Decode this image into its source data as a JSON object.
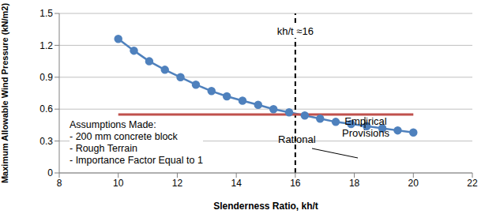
{
  "chart_data": {
    "type": "line",
    "x_label": "Slenderness Ratio, kh/t",
    "y_label": "Maximum Allowable Wind Pressure (kN/m2)",
    "xlim": [
      8,
      22
    ],
    "xticks": [
      8,
      10,
      12,
      14,
      16,
      18,
      20,
      22
    ],
    "ylim": [
      0,
      1.5
    ],
    "yticks": [
      0,
      0.3,
      0.6,
      0.9,
      1.2,
      1.5
    ],
    "grid": true,
    "series": [
      {
        "name": "Rational",
        "color": "#4f81bd",
        "marker": "circle",
        "x": [
          10,
          10.53,
          11.05,
          11.58,
          12.11,
          12.63,
          13.16,
          13.68,
          14.21,
          14.74,
          15.26,
          15.79,
          16.32,
          16.84,
          17.37,
          17.89,
          18.42,
          18.95,
          19.47,
          20
        ],
        "values": [
          1.26,
          1.15,
          1.05,
          0.97,
          0.9,
          0.83,
          0.77,
          0.72,
          0.68,
          0.64,
          0.6,
          0.57,
          0.54,
          0.51,
          0.48,
          0.46,
          0.44,
          0.42,
          0.4,
          0.38
        ]
      },
      {
        "name": "Empirical Provisions",
        "color": "#c0504d",
        "marker": "none",
        "x": [
          10,
          20
        ],
        "values": [
          0.55,
          0.55
        ]
      }
    ],
    "reference_lines": [
      {
        "x": 16,
        "label": "kh/t ≈16",
        "line_style": "dashed"
      }
    ],
    "annotations": [
      "Assumptions Made:",
      "- 200 mm concrete block",
      "- Rough Terrain",
      "- Importance Factor Equal to 1"
    ]
  }
}
